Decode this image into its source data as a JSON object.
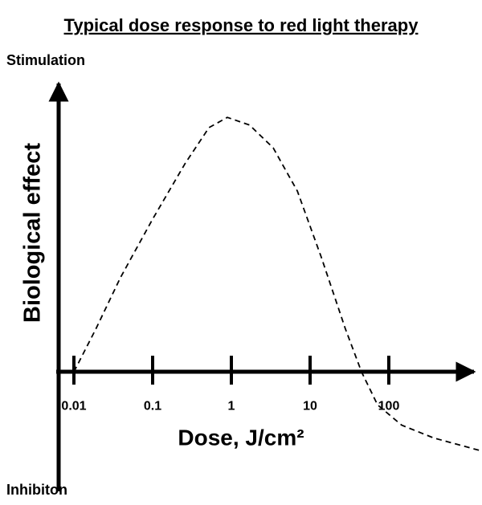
{
  "chart_data": {
    "type": "line",
    "title": "Typical dose response to red light therapy",
    "xlabel": "Dose,  J/cm²",
    "ylabel": "Biological effect",
    "annotations": [
      "Stimulation",
      "Inhibiton"
    ],
    "xscale": "log",
    "xlim": [
      0.0064,
      1207
    ],
    "xticks": [
      0.01,
      0.1,
      1,
      10,
      100
    ],
    "ylim": [
      -47,
      113
    ],
    "color": "#000000",
    "dashed": true,
    "x": [
      0.01,
      0.019,
      0.039,
      0.1,
      0.26,
      0.52,
      0.89,
      1.7,
      3.4,
      6.9,
      13.9,
      28,
      45,
      72,
      146,
      372,
      1455
    ],
    "values": [
      0,
      16.8,
      37,
      60,
      82,
      96,
      100,
      97,
      88,
      71,
      45,
      17,
      0,
      -13,
      -21,
      -26,
      -31
    ]
  }
}
